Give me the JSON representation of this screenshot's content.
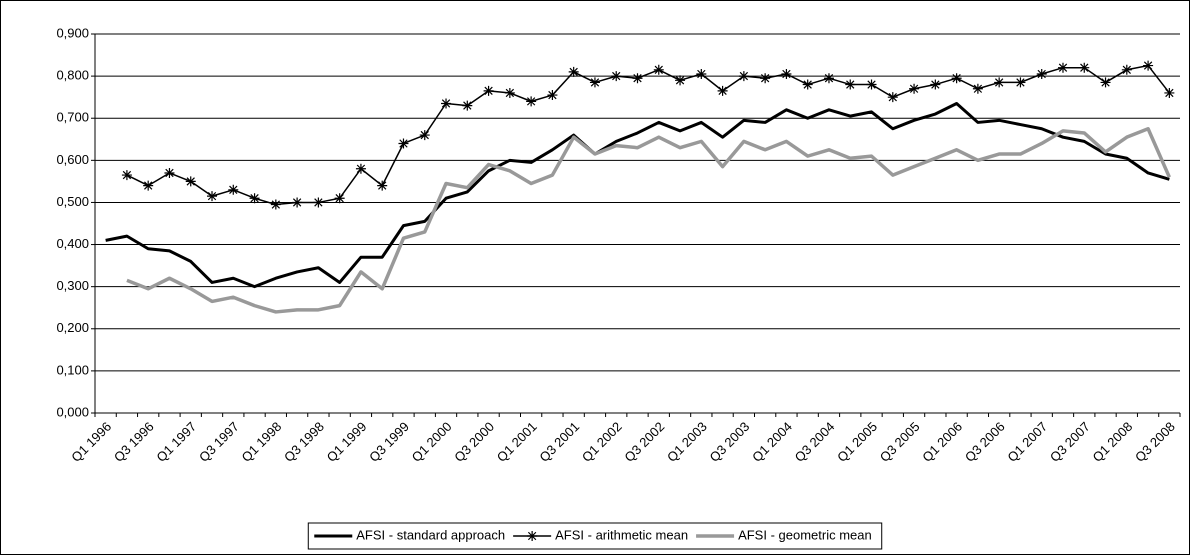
{
  "chart_data": {
    "type": "line",
    "categories": [
      "Q1 1996",
      null,
      "Q3 1996",
      null,
      "Q1 1997",
      null,
      "Q3 1997",
      null,
      "Q1 1998",
      null,
      "Q3 1998",
      null,
      "Q1 1999",
      null,
      "Q3 1999",
      null,
      "Q1 2000",
      null,
      "Q3 2000",
      null,
      "Q1 2001",
      null,
      "Q3 2001",
      null,
      "Q1 2002",
      null,
      "Q3 2002",
      null,
      "Q1 2003",
      null,
      "Q3 2003",
      null,
      "Q1 2004",
      null,
      "Q3 2004",
      null,
      "Q1 2005",
      null,
      "Q3 2005",
      null,
      "Q1 2006",
      null,
      "Q3 2006",
      null,
      "Q1 2007",
      null,
      "Q3 2007",
      null,
      "Q1 2008",
      null,
      "Q3 2008"
    ],
    "series": [
      {
        "name": "AFSI - standard approach",
        "color": "#000000",
        "linewidth": 3,
        "marker": "none",
        "values": [
          0.41,
          0.42,
          0.39,
          0.385,
          0.36,
          0.31,
          0.32,
          0.3,
          0.32,
          0.335,
          0.345,
          0.31,
          0.37,
          0.37,
          0.445,
          0.455,
          0.51,
          0.525,
          0.575,
          0.6,
          0.595,
          0.625,
          0.66,
          0.615,
          0.645,
          0.665,
          0.69,
          0.67,
          0.69,
          0.655,
          0.695,
          0.69,
          0.72,
          0.7,
          0.72,
          0.705,
          0.715,
          0.675,
          0.695,
          0.71,
          0.735,
          0.69,
          0.695,
          0.685,
          0.675,
          0.655,
          0.645,
          0.615,
          0.605,
          0.57,
          0.555
        ]
      },
      {
        "name": "AFSI - arithmetic mean",
        "color": "#000000",
        "linewidth": 1.5,
        "marker": "star",
        "values": [
          null,
          0.565,
          0.54,
          0.57,
          0.55,
          0.515,
          0.53,
          0.51,
          0.495,
          0.5,
          0.5,
          0.51,
          0.58,
          0.54,
          0.64,
          0.66,
          0.735,
          0.73,
          0.765,
          0.76,
          0.74,
          0.755,
          0.81,
          0.785,
          0.8,
          0.795,
          0.815,
          0.79,
          0.805,
          0.765,
          0.8,
          0.795,
          0.805,
          0.78,
          0.795,
          0.78,
          0.78,
          0.75,
          0.77,
          0.78,
          0.795,
          0.77,
          0.785,
          0.785,
          0.805,
          0.82,
          0.82,
          0.785,
          0.815,
          0.825,
          0.76
        ]
      },
      {
        "name": "AFSI -  geometric mean",
        "color": "#999999",
        "linewidth": 3.5,
        "marker": "none",
        "values": [
          null,
          0.315,
          0.295,
          0.32,
          0.295,
          0.265,
          0.275,
          0.255,
          0.24,
          0.245,
          0.245,
          0.255,
          0.335,
          0.295,
          0.415,
          0.43,
          0.545,
          0.535,
          0.59,
          0.575,
          0.545,
          0.565,
          0.655,
          0.615,
          0.635,
          0.63,
          0.655,
          0.63,
          0.645,
          0.585,
          0.645,
          0.625,
          0.645,
          0.61,
          0.625,
          0.605,
          0.61,
          0.565,
          0.585,
          0.605,
          0.625,
          0.6,
          0.615,
          0.615,
          0.64,
          0.67,
          0.665,
          0.62,
          0.655,
          0.675,
          0.56
        ]
      }
    ],
    "ylim": [
      0,
      0.9
    ],
    "yticks": [
      {
        "value": 0,
        "label": "0,000"
      },
      {
        "value": 0.1,
        "label": "0,100"
      },
      {
        "value": 0.2,
        "label": "0,200"
      },
      {
        "value": 0.3,
        "label": "0,300"
      },
      {
        "value": 0.4,
        "label": "0,400"
      },
      {
        "value": 0.5,
        "label": "0,500"
      },
      {
        "value": 0.6,
        "label": "0,600"
      },
      {
        "value": 0.7,
        "label": "0,700"
      },
      {
        "value": 0.8,
        "label": "0,800"
      },
      {
        "value": 0.9,
        "label": "0,900"
      }
    ],
    "grid": true,
    "legend": "bottom"
  }
}
